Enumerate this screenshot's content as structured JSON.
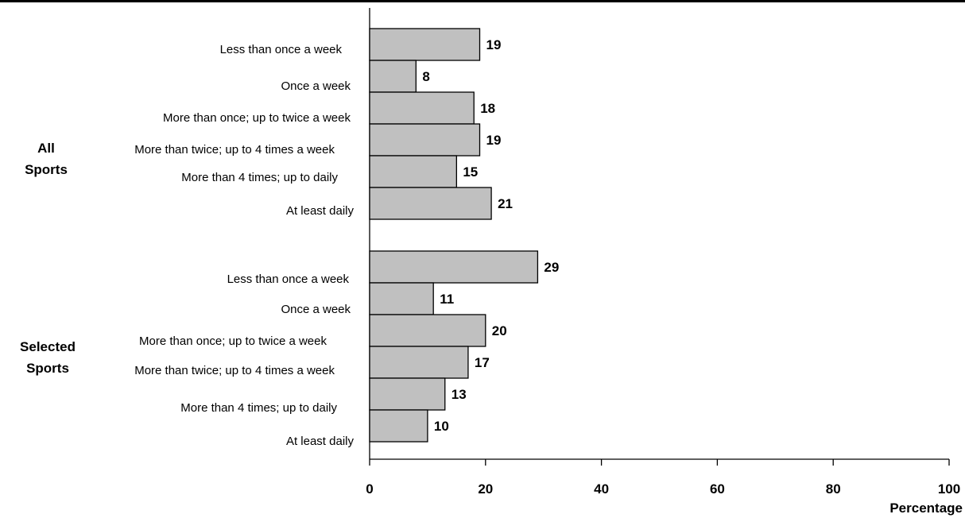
{
  "chart_data": {
    "type": "bar",
    "orientation": "horizontal",
    "groups": [
      {
        "name": "All\nSports",
        "categories": [
          "Less than once a week",
          "Once a week",
          "More than once; up to twice a week",
          "More than twice; up to 4 times a week",
          "More than 4 times; up to daily",
          "At least daily"
        ],
        "values": [
          19,
          8,
          18,
          19,
          15,
          21
        ]
      },
      {
        "name": "Selected\nSports",
        "categories": [
          "Less than once a week",
          "Once a week",
          "More than once; up to twice a week",
          "More than twice; up to 4 times a week",
          "More than 4 times; up to daily",
          "At least daily"
        ],
        "values": [
          29,
          11,
          20,
          17,
          13,
          10
        ]
      }
    ],
    "xlabel": "Percentage",
    "ylabel": "",
    "title": "",
    "xlim": [
      0,
      100
    ],
    "xticks": [
      0,
      20,
      40,
      60,
      80,
      100
    ],
    "grid": false,
    "bar_color": "#c0c0c0",
    "data_labels": true
  }
}
